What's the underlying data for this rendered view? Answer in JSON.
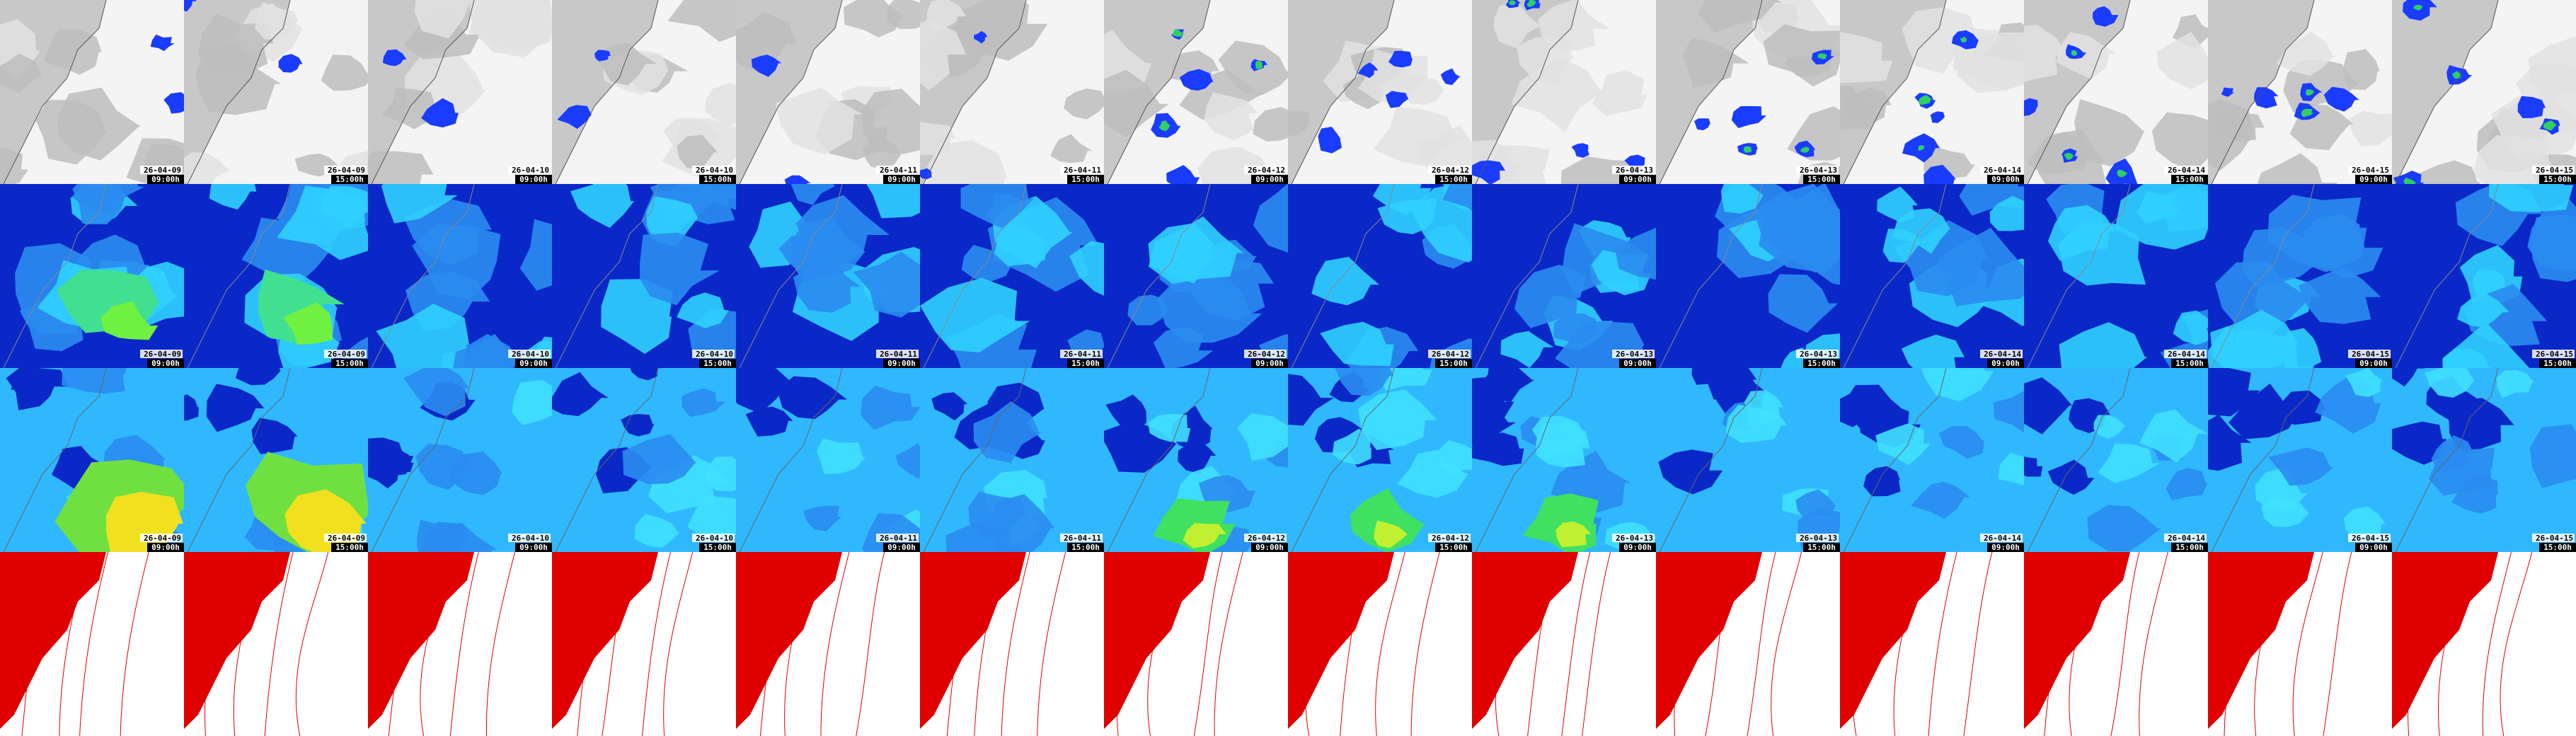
{
  "frames": [
    {
      "date": "26-04-09",
      "time": "09:00h"
    },
    {
      "date": "26-04-09",
      "time": "15:00h"
    },
    {
      "date": "26-04-10",
      "time": "09:00h"
    },
    {
      "date": "26-04-10",
      "time": "15:00h"
    },
    {
      "date": "26-04-11",
      "time": "09:00h"
    },
    {
      "date": "26-04-11",
      "time": "15:00h"
    },
    {
      "date": "26-04-12",
      "time": "09:00h"
    },
    {
      "date": "26-04-12",
      "time": "15:00h"
    },
    {
      "date": "26-04-13",
      "time": "09:00h"
    },
    {
      "date": "26-04-13",
      "time": "15:00h"
    },
    {
      "date": "26-04-14",
      "time": "09:00h"
    },
    {
      "date": "26-04-14",
      "time": "15:00h"
    },
    {
      "date": "26-04-15",
      "time": "09:00h"
    },
    {
      "date": "26-04-15",
      "time": "15:00h"
    }
  ]
}
